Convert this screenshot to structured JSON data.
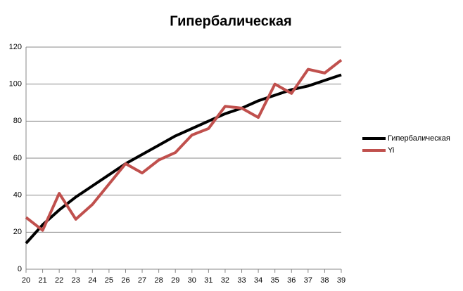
{
  "chart_data": {
    "type": "line",
    "title": "Гипербалическая",
    "x": [
      20,
      21,
      22,
      23,
      24,
      25,
      26,
      27,
      28,
      29,
      30,
      31,
      32,
      33,
      34,
      35,
      36,
      37,
      38,
      39
    ],
    "xlim": [
      20,
      39
    ],
    "xticks": [
      20,
      21,
      22,
      23,
      24,
      25,
      26,
      27,
      28,
      29,
      30,
      31,
      32,
      33,
      34,
      35,
      36,
      37,
      38,
      39
    ],
    "ylim": [
      0,
      120
    ],
    "yticks": [
      0,
      20,
      40,
      60,
      80,
      100,
      120
    ],
    "grid": true,
    "legend": "right",
    "series": [
      {
        "name": "Гипербалическая",
        "color": "#000000",
        "values": [
          14,
          24,
          32,
          39,
          45,
          51,
          57,
          62,
          67,
          72,
          76,
          80,
          84,
          87,
          91,
          94,
          97,
          99,
          102,
          105
        ]
      },
      {
        "name": "Yi",
        "color": "#c0504d",
        "values": [
          28,
          21,
          41,
          27,
          35,
          46,
          57,
          52,
          59,
          63,
          72.5,
          76,
          88,
          87,
          82,
          100,
          95,
          108,
          106,
          113
        ]
      }
    ]
  }
}
